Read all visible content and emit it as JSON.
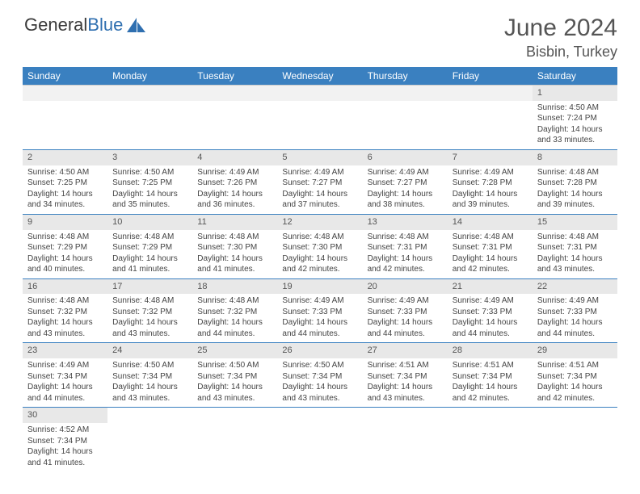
{
  "brand": {
    "text1": "General",
    "text2": "Blue",
    "logo_color": "#2f6fb0"
  },
  "header": {
    "title": "June 2024",
    "location": "Bisbin, Turkey"
  },
  "colors": {
    "header_bg": "#3a80c0",
    "header_text": "#ffffff",
    "daynum_bg": "#e8e8e8",
    "cell_border": "#3a80c0",
    "text": "#444444"
  },
  "day_labels": [
    "Sunday",
    "Monday",
    "Tuesday",
    "Wednesday",
    "Thursday",
    "Friday",
    "Saturday"
  ],
  "weeks": [
    [
      null,
      null,
      null,
      null,
      null,
      null,
      {
        "n": "1",
        "sr": "4:50 AM",
        "ss": "7:24 PM",
        "dl": "14 hours",
        "m": "33"
      }
    ],
    [
      {
        "n": "2",
        "sr": "4:50 AM",
        "ss": "7:25 PM",
        "dl": "14 hours",
        "m": "34"
      },
      {
        "n": "3",
        "sr": "4:50 AM",
        "ss": "7:25 PM",
        "dl": "14 hours",
        "m": "35"
      },
      {
        "n": "4",
        "sr": "4:49 AM",
        "ss": "7:26 PM",
        "dl": "14 hours",
        "m": "36"
      },
      {
        "n": "5",
        "sr": "4:49 AM",
        "ss": "7:27 PM",
        "dl": "14 hours",
        "m": "37"
      },
      {
        "n": "6",
        "sr": "4:49 AM",
        "ss": "7:27 PM",
        "dl": "14 hours",
        "m": "38"
      },
      {
        "n": "7",
        "sr": "4:49 AM",
        "ss": "7:28 PM",
        "dl": "14 hours",
        "m": "39"
      },
      {
        "n": "8",
        "sr": "4:48 AM",
        "ss": "7:28 PM",
        "dl": "14 hours",
        "m": "39"
      }
    ],
    [
      {
        "n": "9",
        "sr": "4:48 AM",
        "ss": "7:29 PM",
        "dl": "14 hours",
        "m": "40"
      },
      {
        "n": "10",
        "sr": "4:48 AM",
        "ss": "7:29 PM",
        "dl": "14 hours",
        "m": "41"
      },
      {
        "n": "11",
        "sr": "4:48 AM",
        "ss": "7:30 PM",
        "dl": "14 hours",
        "m": "41"
      },
      {
        "n": "12",
        "sr": "4:48 AM",
        "ss": "7:30 PM",
        "dl": "14 hours",
        "m": "42"
      },
      {
        "n": "13",
        "sr": "4:48 AM",
        "ss": "7:31 PM",
        "dl": "14 hours",
        "m": "42"
      },
      {
        "n": "14",
        "sr": "4:48 AM",
        "ss": "7:31 PM",
        "dl": "14 hours",
        "m": "42"
      },
      {
        "n": "15",
        "sr": "4:48 AM",
        "ss": "7:31 PM",
        "dl": "14 hours",
        "m": "43"
      }
    ],
    [
      {
        "n": "16",
        "sr": "4:48 AM",
        "ss": "7:32 PM",
        "dl": "14 hours",
        "m": "43"
      },
      {
        "n": "17",
        "sr": "4:48 AM",
        "ss": "7:32 PM",
        "dl": "14 hours",
        "m": "43"
      },
      {
        "n": "18",
        "sr": "4:48 AM",
        "ss": "7:32 PM",
        "dl": "14 hours",
        "m": "44"
      },
      {
        "n": "19",
        "sr": "4:49 AM",
        "ss": "7:33 PM",
        "dl": "14 hours",
        "m": "44"
      },
      {
        "n": "20",
        "sr": "4:49 AM",
        "ss": "7:33 PM",
        "dl": "14 hours",
        "m": "44"
      },
      {
        "n": "21",
        "sr": "4:49 AM",
        "ss": "7:33 PM",
        "dl": "14 hours",
        "m": "44"
      },
      {
        "n": "22",
        "sr": "4:49 AM",
        "ss": "7:33 PM",
        "dl": "14 hours",
        "m": "44"
      }
    ],
    [
      {
        "n": "23",
        "sr": "4:49 AM",
        "ss": "7:34 PM",
        "dl": "14 hours",
        "m": "44"
      },
      {
        "n": "24",
        "sr": "4:50 AM",
        "ss": "7:34 PM",
        "dl": "14 hours",
        "m": "43"
      },
      {
        "n": "25",
        "sr": "4:50 AM",
        "ss": "7:34 PM",
        "dl": "14 hours",
        "m": "43"
      },
      {
        "n": "26",
        "sr": "4:50 AM",
        "ss": "7:34 PM",
        "dl": "14 hours",
        "m": "43"
      },
      {
        "n": "27",
        "sr": "4:51 AM",
        "ss": "7:34 PM",
        "dl": "14 hours",
        "m": "43"
      },
      {
        "n": "28",
        "sr": "4:51 AM",
        "ss": "7:34 PM",
        "dl": "14 hours",
        "m": "42"
      },
      {
        "n": "29",
        "sr": "4:51 AM",
        "ss": "7:34 PM",
        "dl": "14 hours",
        "m": "42"
      }
    ],
    [
      {
        "n": "30",
        "sr": "4:52 AM",
        "ss": "7:34 PM",
        "dl": "14 hours",
        "m": "41"
      },
      null,
      null,
      null,
      null,
      null,
      null
    ]
  ],
  "labels": {
    "sunrise": "Sunrise:",
    "sunset": "Sunset:",
    "daylight": "Daylight:",
    "and": "and",
    "minutes": "minutes."
  }
}
